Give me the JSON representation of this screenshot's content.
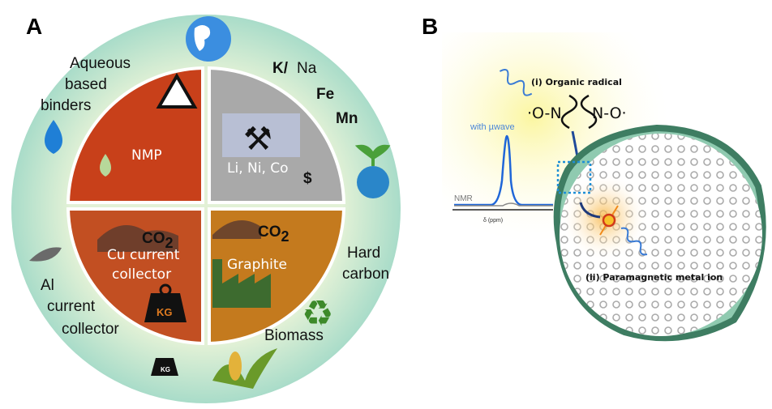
{
  "panel_a": {
    "label": "A",
    "quadrants": {
      "top_left": {
        "label": "NMP",
        "color": "#c8401a"
      },
      "top_right": {
        "label": "Li, Ni, Co",
        "currency": "$",
        "color": "#a9a9a9"
      },
      "bottom_left": {
        "label_line1": "Cu current",
        "label_line2": "collector",
        "co2": "CO",
        "co2_sub": "2",
        "weight": "KG",
        "color": "#c24f22"
      },
      "bottom_right": {
        "label": "Graphite",
        "co2": "CO",
        "co2_sub": "2",
        "color": "#c47a1e"
      }
    },
    "outer": {
      "aqueous": [
        "Aqueous",
        "based",
        "binders"
      ],
      "k": "K/",
      "na": "Na",
      "fe": "Fe",
      "mn": "Mn",
      "hard_carbon": [
        "Hard",
        "carbon"
      ],
      "biomass": "Biomass",
      "al": [
        "Al",
        "current",
        "collector"
      ],
      "weight": "KG",
      "ring_color": "#bfe3c4"
    }
  },
  "panel_b": {
    "label": "B",
    "organic_radical": "(i) Organic radical",
    "radical_left": "·O-N",
    "radical_right": "N-O·",
    "with_uwave": "with µwave",
    "nmr": "NMR",
    "xaxis": "δ (ppm)",
    "paramagnetic": "(ii) Paramagnetic metal ion"
  }
}
